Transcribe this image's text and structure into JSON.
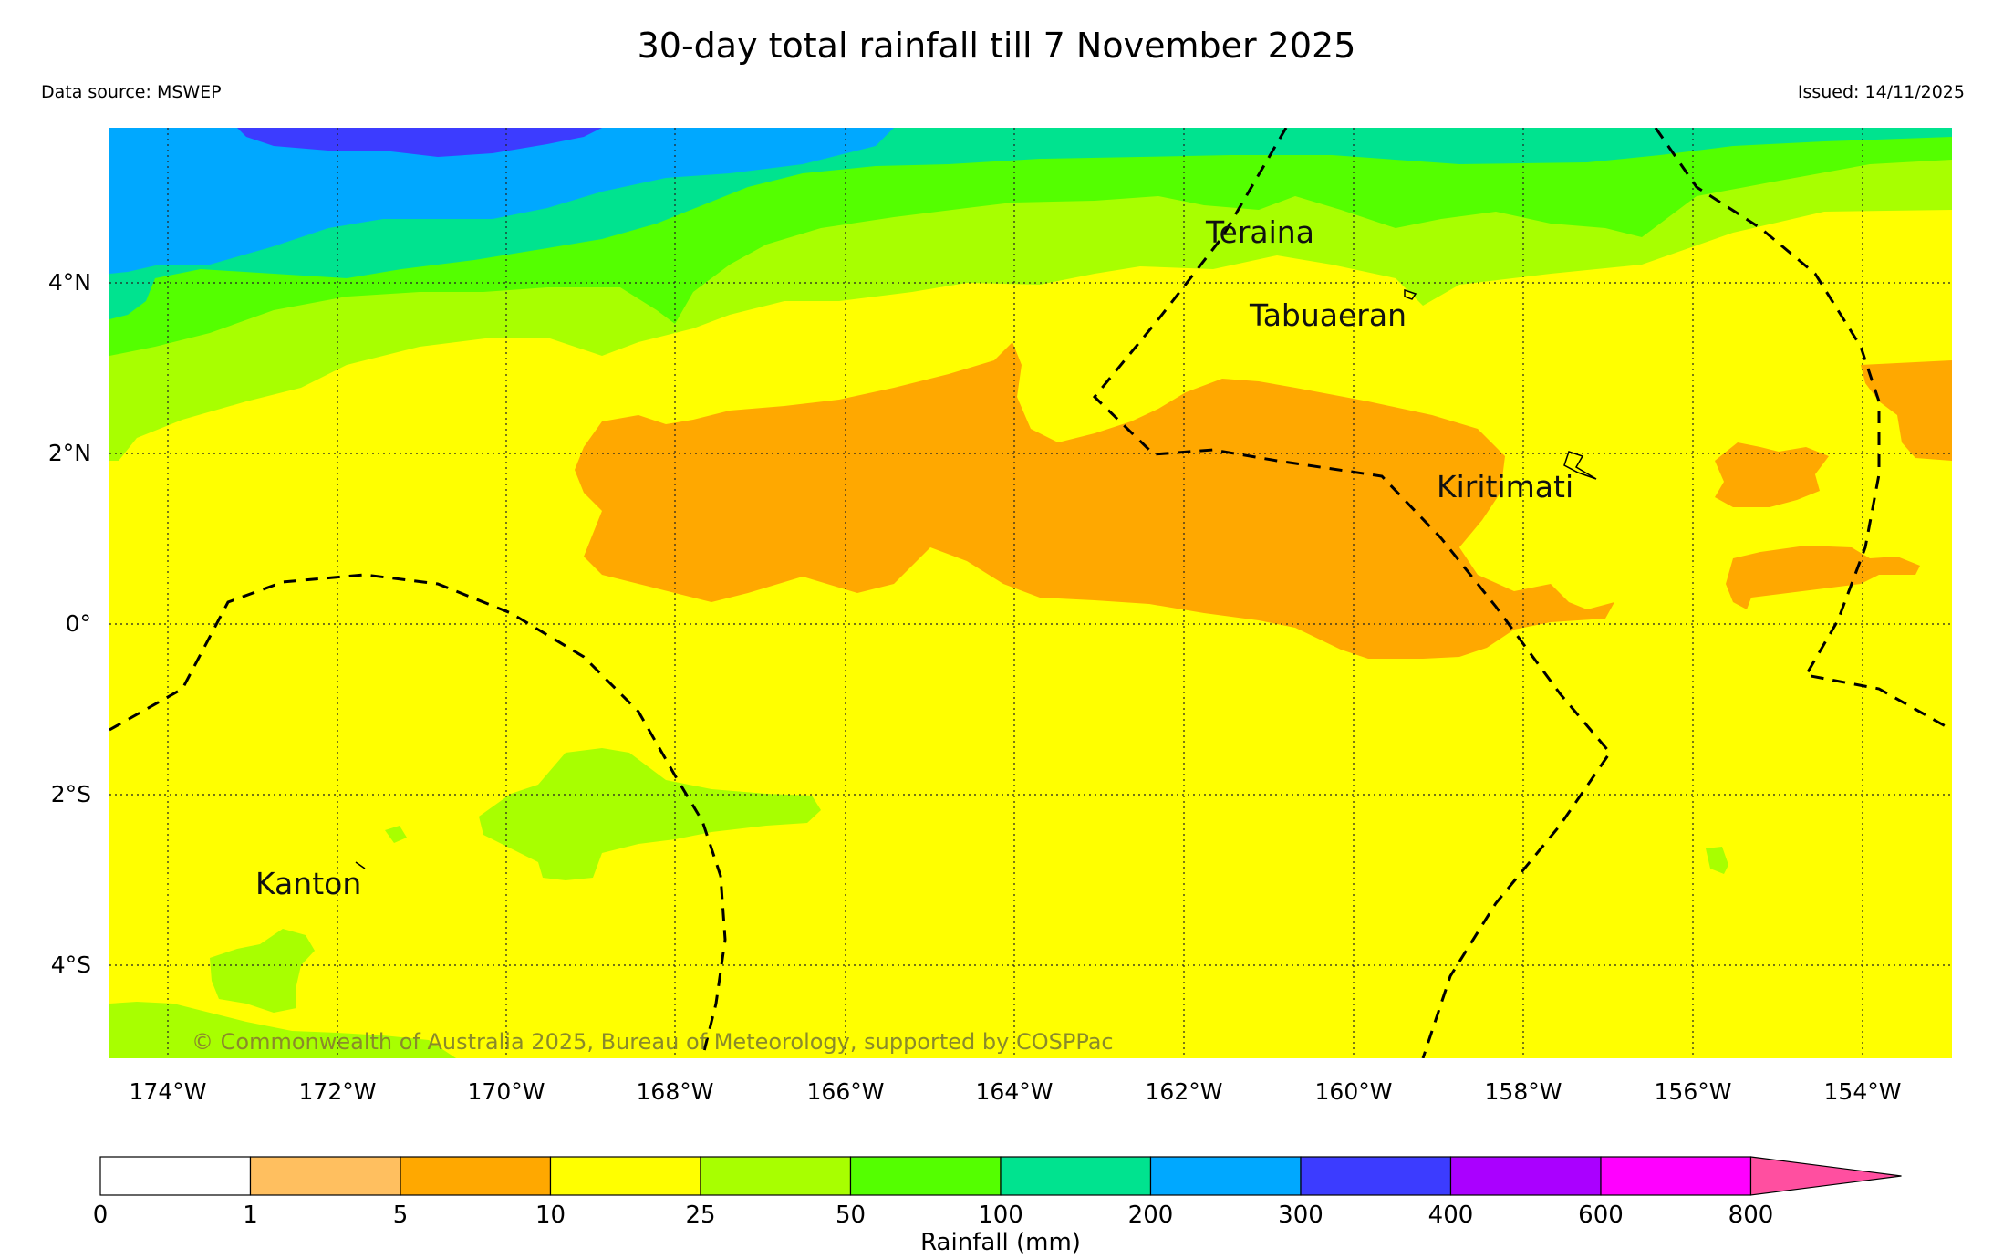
{
  "title": "30-day total rainfall till 7 November 2025",
  "data_source": "Data source: MSWEP",
  "issued": "Issued: 14/11/2025",
  "copyright": "© Commonwealth of Australia 2025, Bureau of Meteorology, supported by COSPPac",
  "map": {
    "lon_ticks": [
      "174°W",
      "172°W",
      "170°W",
      "168°W",
      "166°W",
      "164°W",
      "162°W",
      "160°W",
      "158°W",
      "156°W",
      "154°W"
    ],
    "lat_ticks": [
      "4°N",
      "2°N",
      "0°",
      "2°S",
      "4°S"
    ],
    "places": [
      "Teraina",
      "Tabuaeran",
      "Kiritimati",
      "Kanton"
    ],
    "gridlines": "dotted",
    "boundaries": "dashed"
  },
  "colorbar": {
    "label": "Rainfall (mm)",
    "boundaries": [
      "0",
      "1",
      "5",
      "10",
      "25",
      "50",
      "100",
      "200",
      "300",
      "400",
      "600",
      "800"
    ],
    "colors": [
      "#ffffff",
      "#ffbf5f",
      "#ffa800",
      "#ffff00",
      "#a8ff00",
      "#54ff00",
      "#00e38f",
      "#00a8ff",
      "#3c3cff",
      "#aa00ff",
      "#ff00ff",
      "#ff4fa0"
    ]
  }
}
